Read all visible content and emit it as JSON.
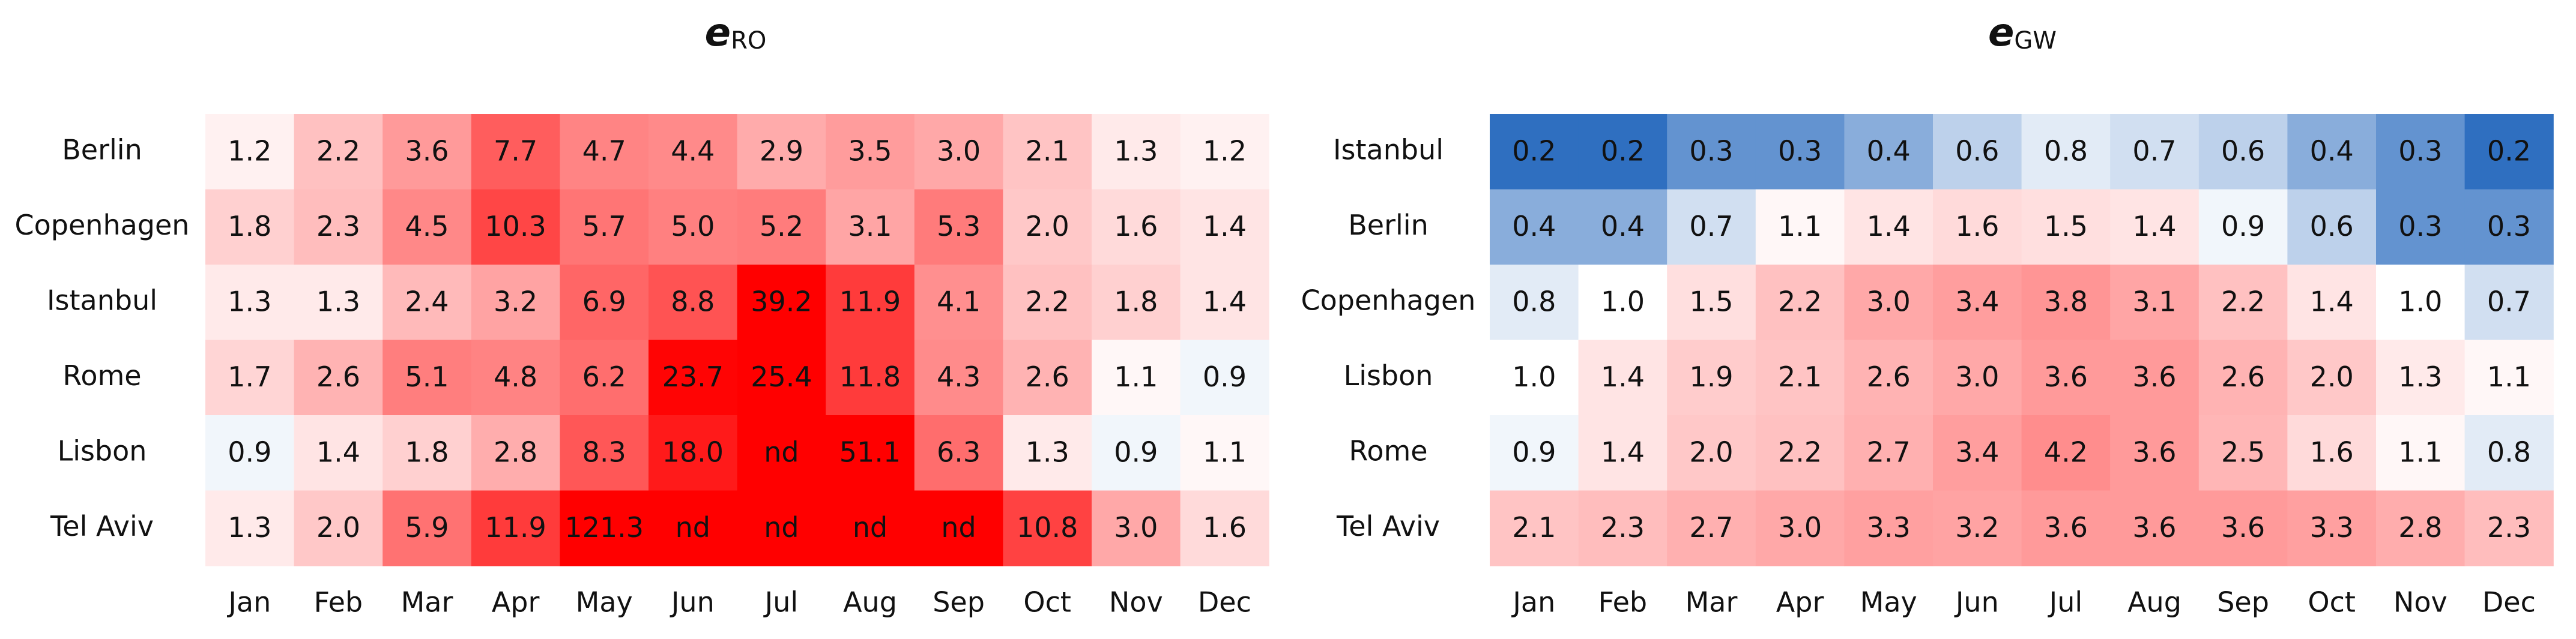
{
  "chart_data": [
    {
      "type": "heatmap",
      "title": "e",
      "title_subscript": "RO",
      "categories": [
        "Jan",
        "Feb",
        "Mar",
        "Apr",
        "May",
        "Jun",
        "Jul",
        "Aug",
        "Sep",
        "Oct",
        "Nov",
        "Dec"
      ],
      "row_categories": [
        "Berlin",
        "Copenhagen",
        "Istanbul",
        "Rome",
        "Lisbon",
        "Tel Aviv"
      ],
      "values": [
        [
          1.2,
          2.2,
          3.6,
          7.7,
          4.7,
          4.4,
          2.9,
          3.5,
          3.0,
          2.1,
          1.3,
          1.2
        ],
        [
          1.8,
          2.3,
          4.5,
          10.3,
          5.7,
          5.0,
          5.2,
          3.1,
          5.3,
          2.0,
          1.6,
          1.4
        ],
        [
          1.3,
          1.3,
          2.4,
          3.2,
          6.9,
          8.8,
          39.2,
          11.9,
          4.1,
          2.2,
          1.8,
          1.4
        ],
        [
          1.7,
          2.6,
          5.1,
          4.8,
          6.2,
          23.7,
          25.4,
          11.8,
          4.3,
          2.6,
          1.1,
          0.9
        ],
        [
          0.9,
          1.4,
          1.8,
          2.8,
          8.3,
          18.0,
          null,
          51.1,
          6.3,
          1.3,
          0.9,
          1.1
        ],
        [
          1.3,
          2.0,
          5.9,
          11.9,
          121.3,
          null,
          null,
          null,
          null,
          10.8,
          3.0,
          1.6
        ]
      ],
      "value_labels": [
        [
          "1.2",
          "2.2",
          "3.6",
          "7.7",
          "4.7",
          "4.4",
          "2.9",
          "3.5",
          "3.0",
          "2.1",
          "1.3",
          "1.2"
        ],
        [
          "1.8",
          "2.3",
          "4.5",
          "10.3",
          "5.7",
          "5.0",
          "5.2",
          "3.1",
          "5.3",
          "2.0",
          "1.6",
          "1.4"
        ],
        [
          "1.3",
          "1.3",
          "2.4",
          "3.2",
          "6.9",
          "8.8",
          "39.2",
          "11.9",
          "4.1",
          "2.2",
          "1.8",
          "1.4"
        ],
        [
          "1.7",
          "2.6",
          "5.1",
          "4.8",
          "6.2",
          "23.7",
          "25.4",
          "11.8",
          "4.3",
          "2.6",
          "1.1",
          "0.9"
        ],
        [
          "0.9",
          "1.4",
          "1.8",
          "2.8",
          "8.3",
          "18.0",
          "nd",
          "51.1",
          "6.3",
          "1.3",
          "0.9",
          "1.1"
        ],
        [
          "1.3",
          "2.0",
          "5.9",
          "11.9",
          "121.3",
          "nd",
          "nd",
          "nd",
          "nd",
          "10.8",
          "3.0",
          "1.6"
        ]
      ],
      "colormap": {
        "low": "#2f6fc0",
        "mid": "#ffffff",
        "high": "#ff0000",
        "range": [
          0.2,
          25
        ],
        "center": 1,
        "log": true
      },
      "missing_color": "#ff0000"
    },
    {
      "type": "heatmap",
      "title": "e",
      "title_subscript": "GW",
      "categories": [
        "Jan",
        "Feb",
        "Mar",
        "Apr",
        "May",
        "Jun",
        "Jul",
        "Aug",
        "Sep",
        "Oct",
        "Nov",
        "Dec"
      ],
      "row_categories": [
        "Istanbul",
        "Berlin",
        "Copenhagen",
        "Lisbon",
        "Rome",
        "Tel Aviv"
      ],
      "values": [
        [
          0.2,
          0.2,
          0.3,
          0.3,
          0.4,
          0.6,
          0.8,
          0.7,
          0.6,
          0.4,
          0.3,
          0.2
        ],
        [
          0.4,
          0.4,
          0.7,
          1.1,
          1.4,
          1.6,
          1.5,
          1.4,
          0.9,
          0.6,
          0.3,
          0.3
        ],
        [
          0.8,
          1.0,
          1.5,
          2.2,
          3.0,
          3.4,
          3.8,
          3.1,
          2.2,
          1.4,
          1.0,
          0.7
        ],
        [
          1.0,
          1.4,
          1.9,
          2.1,
          2.6,
          3.0,
          3.6,
          3.6,
          2.6,
          2.0,
          1.3,
          1.1
        ],
        [
          0.9,
          1.4,
          2.0,
          2.2,
          2.7,
          3.4,
          4.2,
          3.6,
          2.5,
          1.6,
          1.1,
          0.8
        ],
        [
          2.1,
          2.3,
          2.7,
          3.0,
          3.3,
          3.2,
          3.6,
          3.6,
          3.6,
          3.3,
          2.8,
          2.3
        ]
      ],
      "value_labels": [
        [
          "0.2",
          "0.2",
          "0.3",
          "0.3",
          "0.4",
          "0.6",
          "0.8",
          "0.7",
          "0.6",
          "0.4",
          "0.3",
          "0.2"
        ],
        [
          "0.4",
          "0.4",
          "0.7",
          "1.1",
          "1.4",
          "1.6",
          "1.5",
          "1.4",
          "0.9",
          "0.6",
          "0.3",
          "0.3"
        ],
        [
          "0.8",
          "1.0",
          "1.5",
          "2.2",
          "3.0",
          "3.4",
          "3.8",
          "3.1",
          "2.2",
          "1.4",
          "1.0",
          "0.7"
        ],
        [
          "1.0",
          "1.4",
          "1.9",
          "2.1",
          "2.6",
          "3.0",
          "3.6",
          "3.6",
          "2.6",
          "2.0",
          "1.3",
          "1.1"
        ],
        [
          "0.9",
          "1.4",
          "2.0",
          "2.2",
          "2.7",
          "3.4",
          "4.2",
          "3.6",
          "2.5",
          "1.6",
          "1.1",
          "0.8"
        ],
        [
          "2.1",
          "2.3",
          "2.7",
          "3.0",
          "3.3",
          "3.2",
          "3.6",
          "3.6",
          "3.6",
          "3.3",
          "2.8",
          "2.3"
        ]
      ],
      "colormap": {
        "low": "#2f6fc0",
        "mid": "#ffffff",
        "high": "#ff0000",
        "range": [
          0.2,
          25
        ],
        "center": 1,
        "log": true
      },
      "missing_color": "#ff0000"
    }
  ]
}
